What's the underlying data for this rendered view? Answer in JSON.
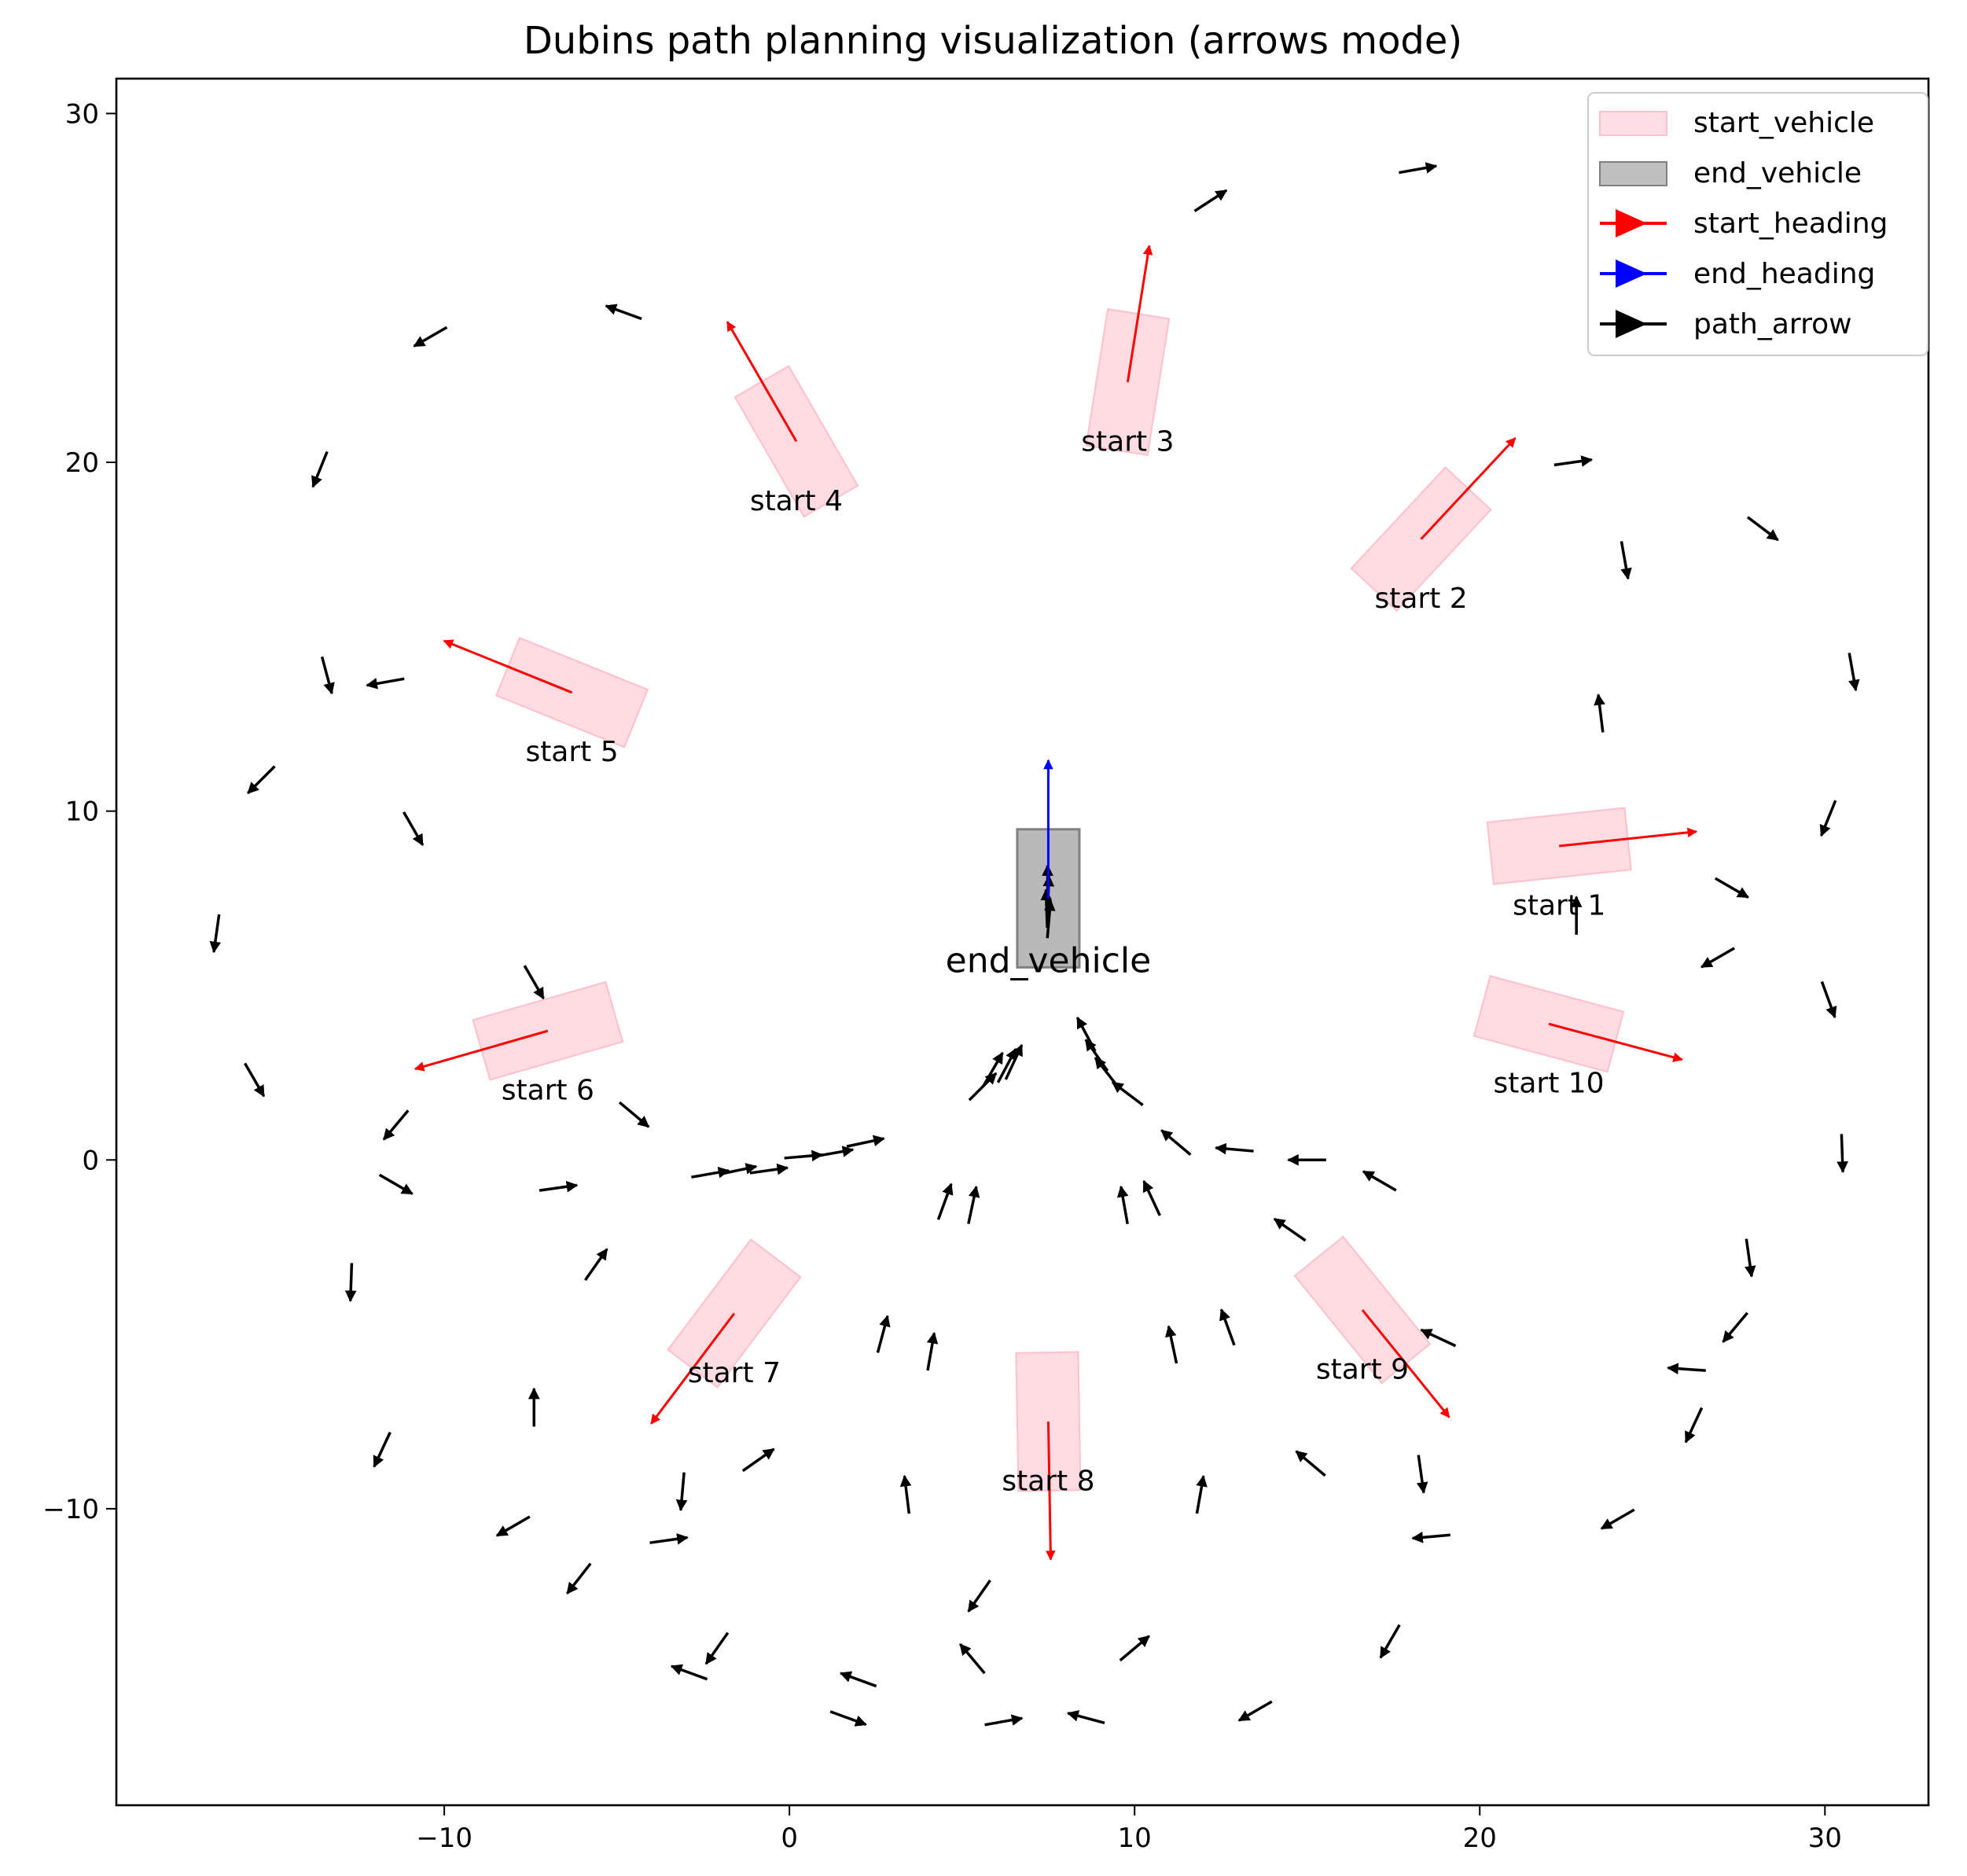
{
  "chart_data": {
    "type": "scatter",
    "title": "Dubins path planning visualization (arrows mode)",
    "xlabel": "",
    "ylabel": "",
    "xlim": [
      -19.5,
      33.0
    ],
    "ylim": [
      -18.5,
      31.0
    ],
    "x_ticks": [
      -10,
      0,
      10,
      20,
      30
    ],
    "y_ticks": [
      -10,
      0,
      10,
      20,
      30
    ],
    "x_tick_labels": [
      "−10",
      "0",
      "10",
      "20",
      "30"
    ],
    "y_tick_labels": [
      "−10",
      "0",
      "10",
      "20",
      "30"
    ],
    "grid": false,
    "legend_position": "top-right",
    "legend": [
      {
        "label": "start_vehicle",
        "kind": "patch",
        "color": "#ffc0cb"
      },
      {
        "label": "end_vehicle",
        "kind": "patch",
        "color": "#808080"
      },
      {
        "label": "start_heading",
        "kind": "arrow",
        "color": "#ff0000"
      },
      {
        "label": "end_heading",
        "kind": "arrow",
        "color": "#0000ff"
      },
      {
        "label": "path_arrow",
        "kind": "arrow",
        "color": "#000000"
      }
    ],
    "colors": {
      "start_vehicle": "#ffc0cb",
      "end_vehicle": "#808080",
      "start_heading": "#ff0000",
      "end_heading": "#0000ff",
      "path_arrow": "#000000"
    },
    "end_vehicle": {
      "label": "end_vehicle",
      "x": 7.5,
      "y": 7.5,
      "heading_deg": 90
    },
    "start_vehicles": [
      {
        "label": "start 1",
        "x": 22.3,
        "y": 9.0,
        "heading_deg": 6
      },
      {
        "label": "start 2",
        "x": 18.3,
        "y": 17.8,
        "heading_deg": 47
      },
      {
        "label": "start 3",
        "x": 9.8,
        "y": 22.3,
        "heading_deg": 81
      },
      {
        "label": "start 4",
        "x": 0.2,
        "y": 20.6,
        "heading_deg": 120
      },
      {
        "label": "start 5",
        "x": -6.3,
        "y": 13.4,
        "heading_deg": 158
      },
      {
        "label": "start 6",
        "x": -7.0,
        "y": 3.7,
        "heading_deg": 196
      },
      {
        "label": "start 7",
        "x": -1.6,
        "y": -4.4,
        "heading_deg": 233
      },
      {
        "label": "start 8",
        "x": 7.5,
        "y": -7.5,
        "heading_deg": 271
      },
      {
        "label": "start 9",
        "x": 16.6,
        "y": -4.3,
        "heading_deg": 309
      },
      {
        "label": "start 10",
        "x": 22.0,
        "y": 3.9,
        "heading_deg": 345
      }
    ],
    "path_arrows": [
      [
        7.52,
        6.9,
        85
      ],
      [
        7.45,
        7.2,
        92
      ],
      [
        7.5,
        7.6,
        88
      ],
      [
        7.48,
        7.9,
        90
      ],
      [
        22.8,
        7.0,
        90
      ],
      [
        23.5,
        12.8,
        97
      ],
      [
        24.2,
        17.2,
        -80
      ],
      [
        22.7,
        20.0,
        8
      ],
      [
        12.2,
        27.5,
        33
      ],
      [
        18.2,
        28.4,
        10
      ],
      [
        28.2,
        18.1,
        -37
      ],
      [
        30.8,
        14.0,
        -80
      ],
      [
        30.1,
        9.8,
        -112
      ],
      [
        27.3,
        7.8,
        -30
      ],
      [
        26.9,
        5.8,
        210
      ],
      [
        30.1,
        4.6,
        -70
      ],
      [
        30.5,
        0.2,
        -88
      ],
      [
        27.8,
        -2.8,
        -82
      ],
      [
        27.4,
        -4.8,
        -130
      ],
      [
        26.0,
        -6.0,
        176
      ],
      [
        26.2,
        -7.6,
        -115
      ],
      [
        24.0,
        -10.3,
        210
      ],
      [
        18.6,
        -10.8,
        185
      ],
      [
        18.3,
        -9.0,
        -82
      ],
      [
        17.4,
        -13.8,
        -120
      ],
      [
        13.5,
        -15.8,
        210
      ],
      [
        17.1,
        -0.6,
        150
      ],
      [
        15.0,
        0.0,
        180
      ],
      [
        12.9,
        0.3,
        175
      ],
      [
        11.2,
        0.5,
        140
      ],
      [
        9.8,
        1.9,
        143
      ],
      [
        9.2,
        2.5,
        128
      ],
      [
        8.9,
        3.0,
        125
      ],
      [
        8.6,
        3.6,
        118
      ],
      [
        6.5,
        2.8,
        65
      ],
      [
        6.3,
        2.7,
        62
      ],
      [
        5.9,
        2.6,
        60
      ],
      [
        5.6,
        2.1,
        45
      ],
      [
        2.2,
        0.5,
        12
      ],
      [
        1.3,
        0.2,
        10
      ],
      [
        0.4,
        0.1,
        5
      ],
      [
        -0.6,
        -0.3,
        8
      ],
      [
        -1.5,
        -0.3,
        12
      ],
      [
        -2.3,
        -0.4,
        10
      ],
      [
        4.5,
        -1.2,
        70
      ],
      [
        5.3,
        -1.3,
        78
      ],
      [
        9.7,
        -1.3,
        100
      ],
      [
        10.5,
        -1.1,
        115
      ],
      [
        14.5,
        -2.0,
        145
      ],
      [
        18.8,
        -5.1,
        155
      ],
      [
        12.7,
        -4.8,
        110
      ],
      [
        11.1,
        -5.3,
        102
      ],
      [
        2.7,
        -5.0,
        75
      ],
      [
        4.1,
        -5.5,
        80
      ],
      [
        3.4,
        -9.6,
        97
      ],
      [
        11.9,
        -9.6,
        80
      ],
      [
        -0.9,
        -8.6,
        35
      ],
      [
        15.1,
        -8.7,
        140
      ],
      [
        -3.1,
        -9.5,
        265
      ],
      [
        -7.4,
        -7.1,
        90
      ],
      [
        -5.6,
        -3.0,
        55
      ],
      [
        -6.7,
        -0.8,
        8
      ],
      [
        -12.7,
        -3.5,
        268
      ],
      [
        -11.8,
        -8.3,
        245
      ],
      [
        -6.1,
        -12.0,
        232
      ],
      [
        -3.5,
        -10.9,
        8
      ],
      [
        -8.0,
        -10.5,
        210
      ],
      [
        -2.1,
        -14.0,
        235
      ],
      [
        -2.9,
        -14.7,
        160
      ],
      [
        2.0,
        -14.9,
        160
      ],
      [
        1.7,
        -16.0,
        340
      ],
      [
        6.2,
        -16.1,
        10
      ],
      [
        8.6,
        -16.0,
        165
      ],
      [
        5.3,
        -14.3,
        130
      ],
      [
        5.5,
        -12.5,
        235
      ],
      [
        10.0,
        -14.0,
        40
      ],
      [
        -11.4,
        -0.7,
        330
      ],
      [
        -11.4,
        1.0,
        230
      ],
      [
        -7.4,
        5.1,
        300
      ],
      [
        -4.5,
        1.3,
        320
      ],
      [
        -10.9,
        9.5,
        300
      ],
      [
        -15.3,
        10.9,
        225
      ],
      [
        -16.6,
        6.5,
        262
      ],
      [
        -15.5,
        2.3,
        300
      ],
      [
        -13.4,
        13.9,
        285
      ],
      [
        -11.7,
        13.7,
        190
      ],
      [
        -13.6,
        19.8,
        248
      ],
      [
        -10.4,
        23.6,
        210
      ],
      [
        -4.8,
        24.3,
        160
      ]
    ]
  }
}
